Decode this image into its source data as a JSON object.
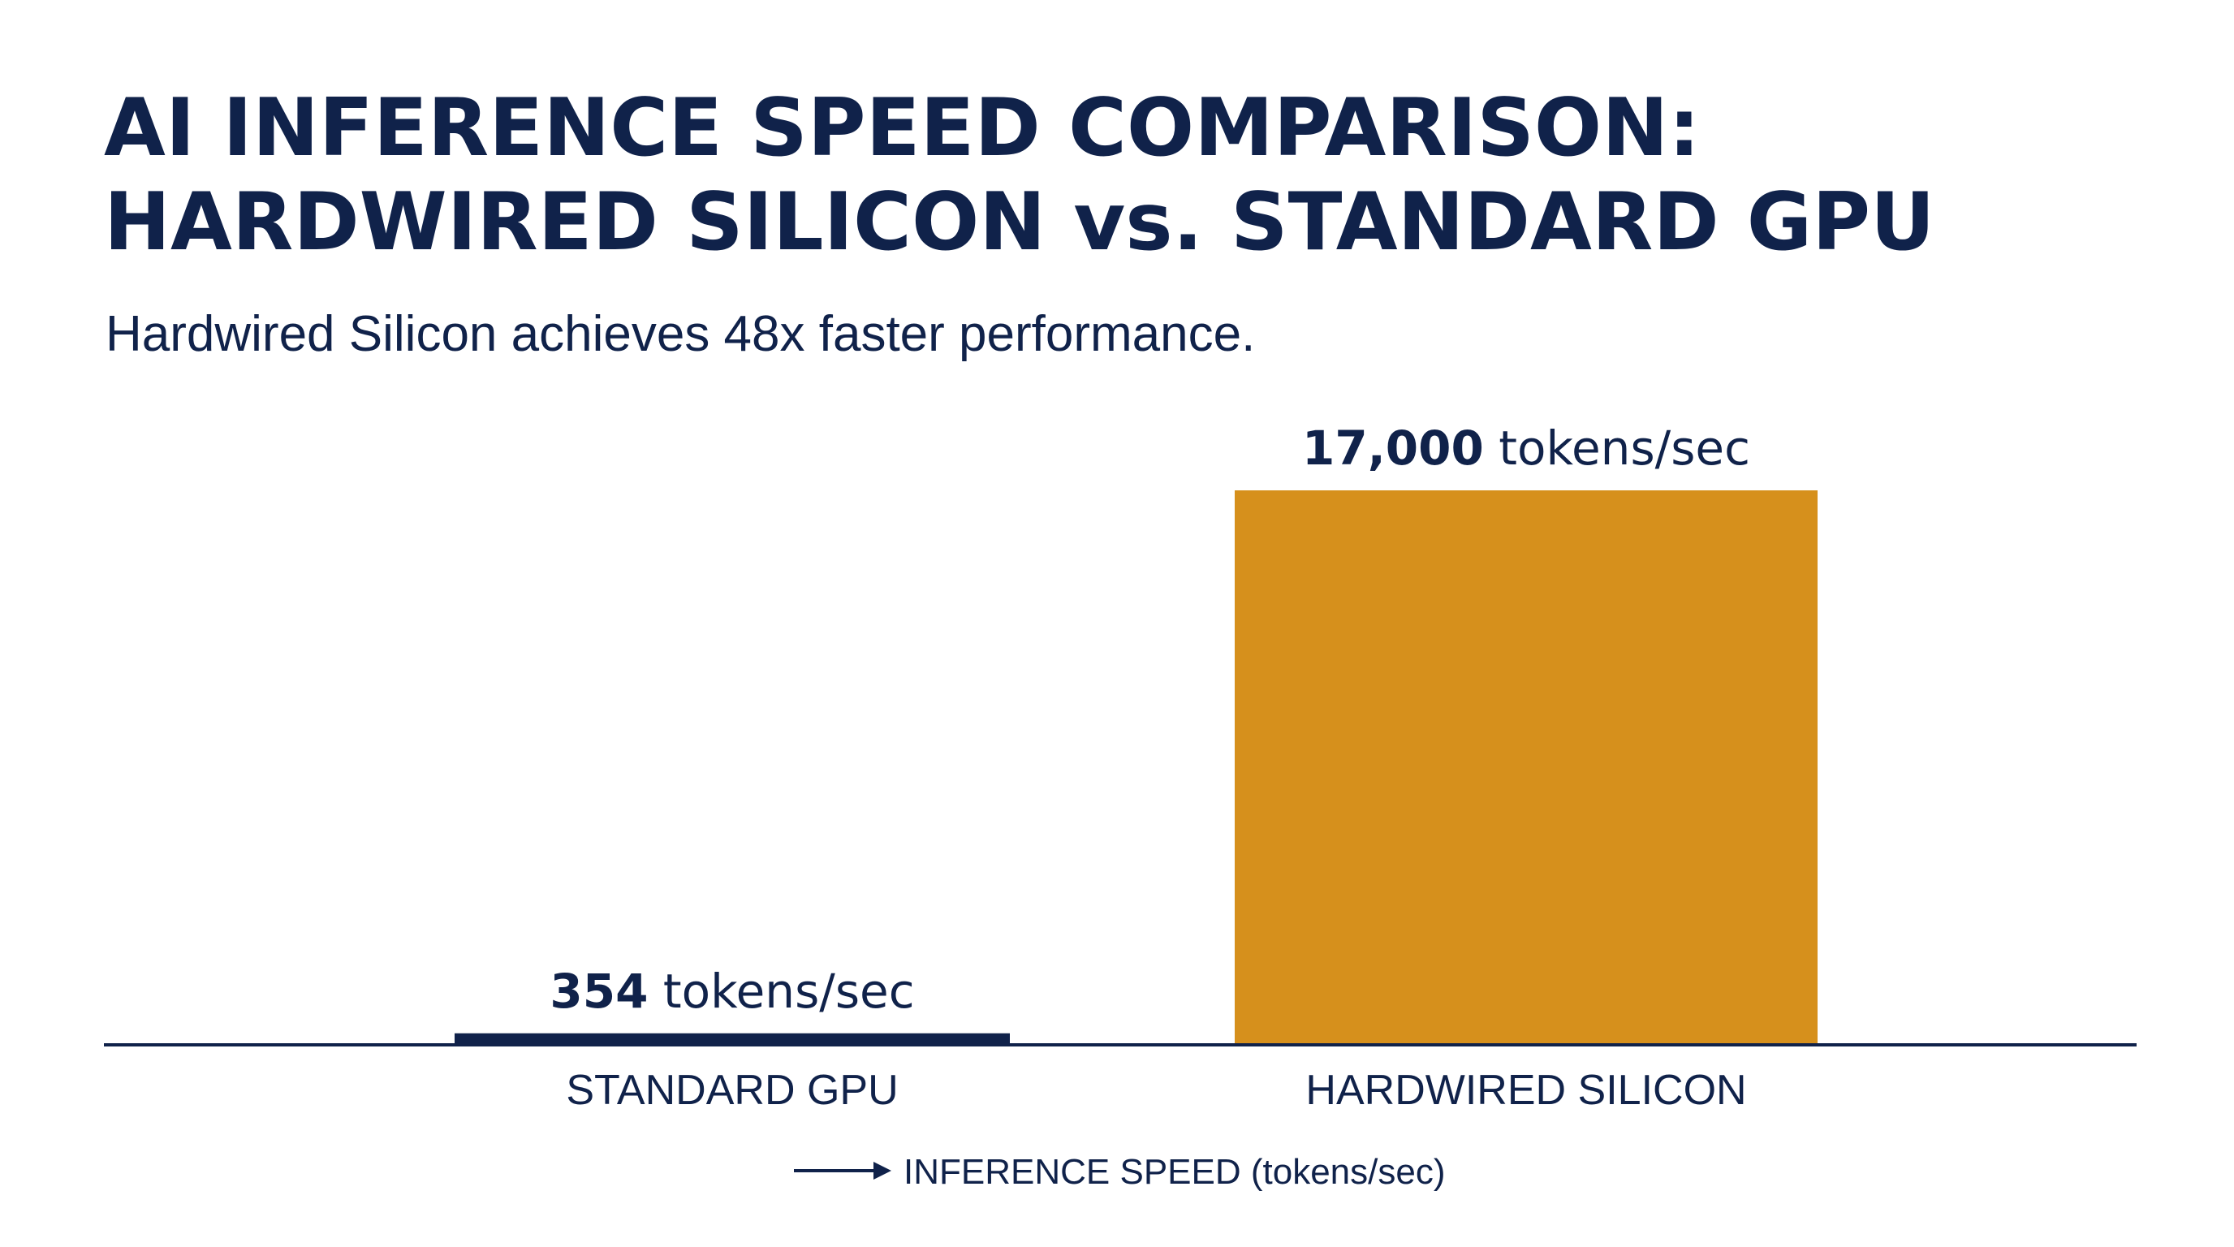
{
  "chart_data": {
    "type": "bar",
    "title": [
      "AI INFERENCE SPEED COMPARISON:",
      "HARDWIRED SILICON vs. STANDARD GPU"
    ],
    "subtitle": "Hardwired Silicon achieves 48x faster performance.",
    "categories": [
      "STANDARD GPU",
      "HARDWIRED SILICON"
    ],
    "values": [
      354,
      17000
    ],
    "value_labels": [
      {
        "number": "354",
        "unit": " tokens/sec"
      },
      {
        "number": "17,000",
        "unit": " tokens/sec"
      }
    ],
    "colors": [
      "#10224a",
      "#d6901c"
    ],
    "xlabel": "INFERENCE SPEED (tokens/sec)",
    "ylabel": "",
    "ylim": [
      0,
      17000
    ],
    "grid": false,
    "legend": "none"
  }
}
